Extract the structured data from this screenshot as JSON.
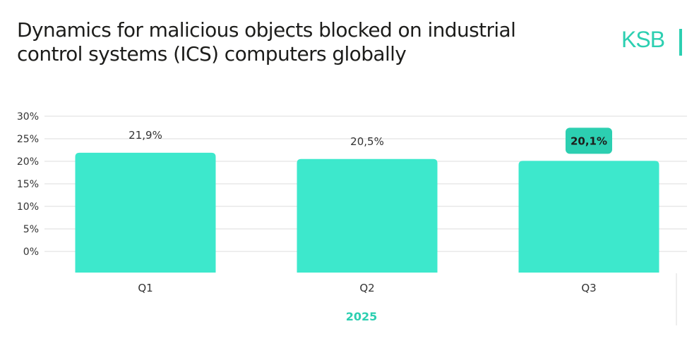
{
  "title_lines": [
    "Dynamics for malicious objects blocked on industrial",
    "control systems (ICS) computers globally"
  ],
  "logo": "KSB",
  "chart_data": {
    "type": "bar",
    "categories": [
      "Q1",
      "Q2",
      "Q3"
    ],
    "values": [
      21.9,
      20.5,
      20.1
    ],
    "data_labels": [
      "21,9%",
      "20,5%",
      "20,1%"
    ],
    "highlighted": "Q3",
    "xlabel": "2025",
    "ylabel": "",
    "ylim": [
      0,
      30
    ],
    "yticks": [
      "0%",
      "5%",
      "10%",
      "15%",
      "20%",
      "25%",
      "30%"
    ],
    "grid": true,
    "colors": {
      "bar": "#3de8cc",
      "highlight_badge": "#2ccfb1",
      "accent": "#2ccfb1"
    }
  }
}
